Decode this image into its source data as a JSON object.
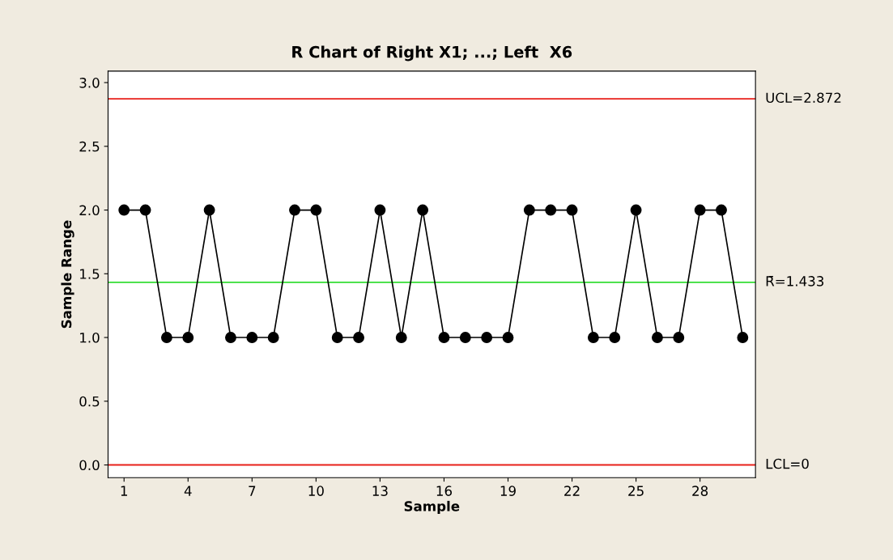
{
  "chart_data": {
    "type": "line",
    "title": "R Chart of Right X1; ...; Left  X6",
    "xlabel": "Sample",
    "ylabel": "Sample Range",
    "x": [
      1,
      2,
      3,
      4,
      5,
      6,
      7,
      8,
      9,
      10,
      11,
      12,
      13,
      14,
      15,
      16,
      17,
      18,
      19,
      20,
      21,
      22,
      23,
      24,
      25,
      26,
      27,
      28,
      29,
      30
    ],
    "series": [
      {
        "color": "#000000",
        "values": [
          2,
          2,
          1,
          1,
          2,
          1,
          1,
          1,
          2,
          2,
          1,
          1,
          2,
          1,
          2,
          1,
          1,
          1,
          1,
          2,
          2,
          2,
          1,
          1,
          2,
          1,
          1,
          2,
          2,
          1
        ]
      }
    ],
    "xlim": [
      0.25,
      30.6
    ],
    "xticks": [
      1,
      4,
      7,
      10,
      13,
      16,
      19,
      22,
      25,
      28
    ],
    "ylim": [
      -0.1,
      3.09
    ],
    "yticks": [
      {
        "value": 0,
        "label": "0.0"
      },
      {
        "value": 0.5,
        "label": "0.5"
      },
      {
        "value": 1,
        "label": "1.0"
      },
      {
        "value": 1.5,
        "label": "1.5"
      },
      {
        "value": 2,
        "label": "2.0"
      },
      {
        "value": 2.5,
        "label": "2.5"
      },
      {
        "value": 3,
        "label": "3.0"
      }
    ],
    "ref_lines": [
      {
        "axis": "y",
        "value": 2.872,
        "label": "UCL=2.872",
        "color": "#e8201a"
      },
      {
        "axis": "y",
        "value": 1.433,
        "label": "R̄=1.433",
        "color": "#33dd33"
      },
      {
        "axis": "y",
        "value": 0,
        "label": "LCL=0",
        "color": "#e8201a"
      }
    ],
    "marker": "circle",
    "line_style": "solid"
  }
}
